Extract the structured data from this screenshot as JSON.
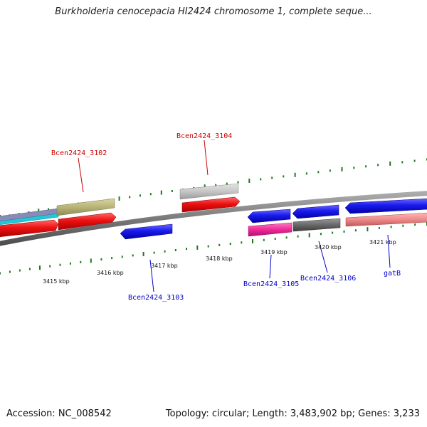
{
  "title": "Burkholderia cenocepacia HI2424 chromosome 1, complete seque...",
  "footer": {
    "accession": "Accession: NC_008542",
    "stats": "Topology: circular; Length: 3,483,902 bp; Genes: 3,233"
  },
  "colors": {
    "backbone": "#7a7a7a",
    "tick": "#1e7a1e",
    "label_forward": "#cc0000",
    "label_reverse": "#0000cc"
  },
  "axis_ticks": [
    "3415 kbp",
    "3416 kbp",
    "3417 kbp",
    "3418 kbp",
    "3419 kbp",
    "3420 kbp",
    "3421 kbp"
  ],
  "gene_labels": {
    "g3102": "Bcen2424_3102",
    "g3104": "Bcen2424_3104",
    "g3103": "Bcen2424_3103",
    "g3105": "Bcen2424_3105",
    "g3106": "Bcen2424_3106",
    "gatb": "gatB"
  },
  "features": [
    {
      "id": "track-purple-left",
      "color": "#8a8ab8",
      "strand": "+"
    },
    {
      "id": "track-cyan-left",
      "color": "#22c8d8",
      "strand": "+"
    },
    {
      "id": "track-olive-left",
      "color": "#b8b478",
      "strand": "+"
    },
    {
      "id": "red-arrow-left",
      "color": "#ee1111",
      "strand": "+"
    },
    {
      "id": "red-arrow-3102",
      "color": "#ee1111",
      "strand": "+"
    },
    {
      "id": "grey-box-3104",
      "color": "#c8c8c8",
      "strand": "+"
    },
    {
      "id": "red-arrow-3104",
      "color": "#ee1111",
      "strand": "+"
    },
    {
      "id": "blue-arrow-3103",
      "color": "#1a1aee",
      "strand": "-"
    },
    {
      "id": "blue-arrow-3105",
      "color": "#1a1aee",
      "strand": "-"
    },
    {
      "id": "magenta-box-3105",
      "color": "#ee2a9a",
      "strand": "-"
    },
    {
      "id": "blue-arrow-3106",
      "color": "#1a1aee",
      "strand": "-"
    },
    {
      "id": "dark-grey-box-3106",
      "color": "#6a6a6a",
      "strand": "-"
    },
    {
      "id": "blue-arrow-gatb",
      "color": "#1a1aee",
      "strand": "-"
    },
    {
      "id": "salmon-box-gatb",
      "color": "#ee8a8a",
      "strand": "-"
    }
  ]
}
